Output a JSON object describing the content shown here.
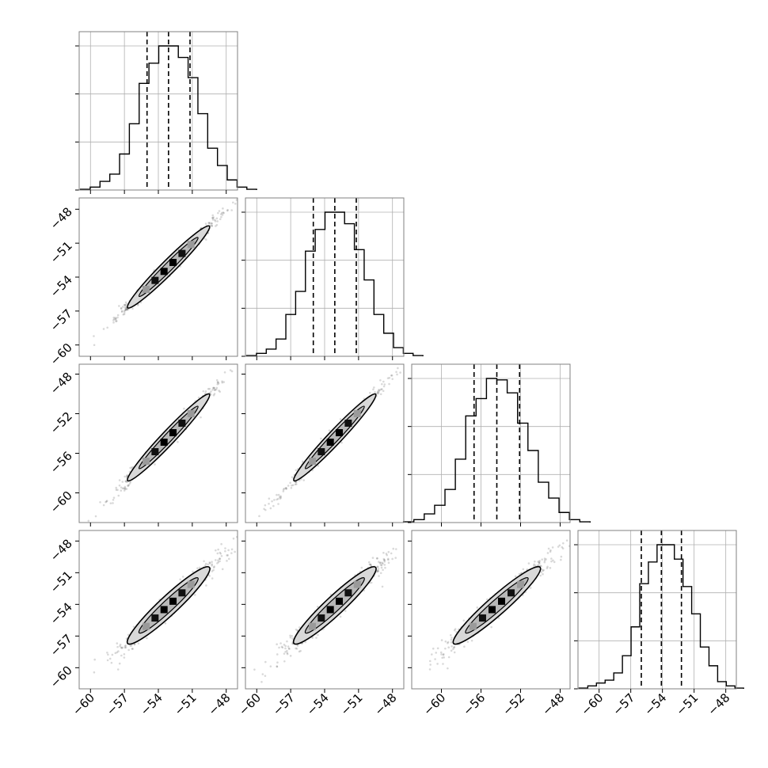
{
  "chart_data": {
    "type": "corner",
    "n_params": 4,
    "grid": true,
    "colors": {
      "hist": "#000000",
      "points": "#000000",
      "contour_fill": "#d8d8d8",
      "frame": "#808080",
      "grid": "#b0b0b0"
    },
    "params": [
      {
        "index": 0,
        "range": [
          -61,
          -47
        ],
        "ticks": [
          -60,
          -57,
          -54,
          -51,
          -48
        ],
        "tick_labels": [
          "−60",
          "−57",
          "−54",
          "−51",
          "−48"
        ],
        "quantiles": [
          -55.0,
          -53.1,
          -51.2
        ],
        "hist": [
          0.005,
          0.02,
          0.06,
          0.11,
          0.25,
          0.46,
          0.74,
          0.88,
          1.0,
          1.0,
          0.92,
          0.78,
          0.53,
          0.29,
          0.17,
          0.07,
          0.02,
          0.005
        ]
      },
      {
        "index": 1,
        "range": [
          -61,
          -47
        ],
        "ticks": [
          -60,
          -57,
          -54,
          -51,
          -48
        ],
        "tick_labels": [
          "−60",
          "−57",
          "−54",
          "−51",
          "−48"
        ],
        "quantiles": [
          -55.0,
          -53.1,
          -51.2
        ],
        "hist": [
          0.005,
          0.02,
          0.05,
          0.12,
          0.29,
          0.45,
          0.73,
          0.88,
          1.0,
          1.0,
          0.92,
          0.74,
          0.53,
          0.29,
          0.16,
          0.06,
          0.02,
          0.005
        ]
      },
      {
        "index": 2,
        "range": [
          -63,
          -47
        ],
        "ticks": [
          -60,
          -56,
          -52,
          -48
        ],
        "tick_labels": [
          "−60",
          "−56",
          "−52",
          "−48"
        ],
        "quantiles": [
          -56.7,
          -54.4,
          -52.1
        ],
        "hist": [
          0.005,
          0.02,
          0.06,
          0.12,
          0.23,
          0.44,
          0.74,
          0.86,
          1.0,
          0.99,
          0.9,
          0.69,
          0.5,
          0.28,
          0.17,
          0.07,
          0.02,
          0.005
        ]
      },
      {
        "index": 3,
        "range": [
          -62,
          -47
        ],
        "ticks": [
          -60,
          -57,
          -54,
          -51,
          -48
        ],
        "tick_labels": [
          "−60",
          "−57",
          "−54",
          "−51",
          "−48"
        ],
        "quantiles": [
          -56.0,
          -54.1,
          -52.2
        ],
        "hist": [
          0.005,
          0.02,
          0.04,
          0.06,
          0.11,
          0.23,
          0.43,
          0.73,
          0.88,
          1.0,
          1.0,
          0.9,
          0.71,
          0.52,
          0.29,
          0.16,
          0.05,
          0.02,
          0.005
        ]
      }
    ],
    "pairs": [
      {
        "row": 1,
        "col": 0,
        "center": [
          -53.1,
          -53.1
        ],
        "correlation": 0.99
      },
      {
        "row": 2,
        "col": 0,
        "center": [
          -53.1,
          -54.4
        ],
        "correlation": 0.99
      },
      {
        "row": 2,
        "col": 1,
        "center": [
          -53.1,
          -54.4
        ],
        "correlation": 0.99
      },
      {
        "row": 3,
        "col": 0,
        "center": [
          -53.1,
          -54.1
        ],
        "correlation": 0.97
      },
      {
        "row": 3,
        "col": 1,
        "center": [
          -53.1,
          -54.1
        ],
        "correlation": 0.97
      },
      {
        "row": 3,
        "col": 2,
        "center": [
          -54.4,
          -54.1
        ],
        "correlation": 0.97
      }
    ]
  }
}
